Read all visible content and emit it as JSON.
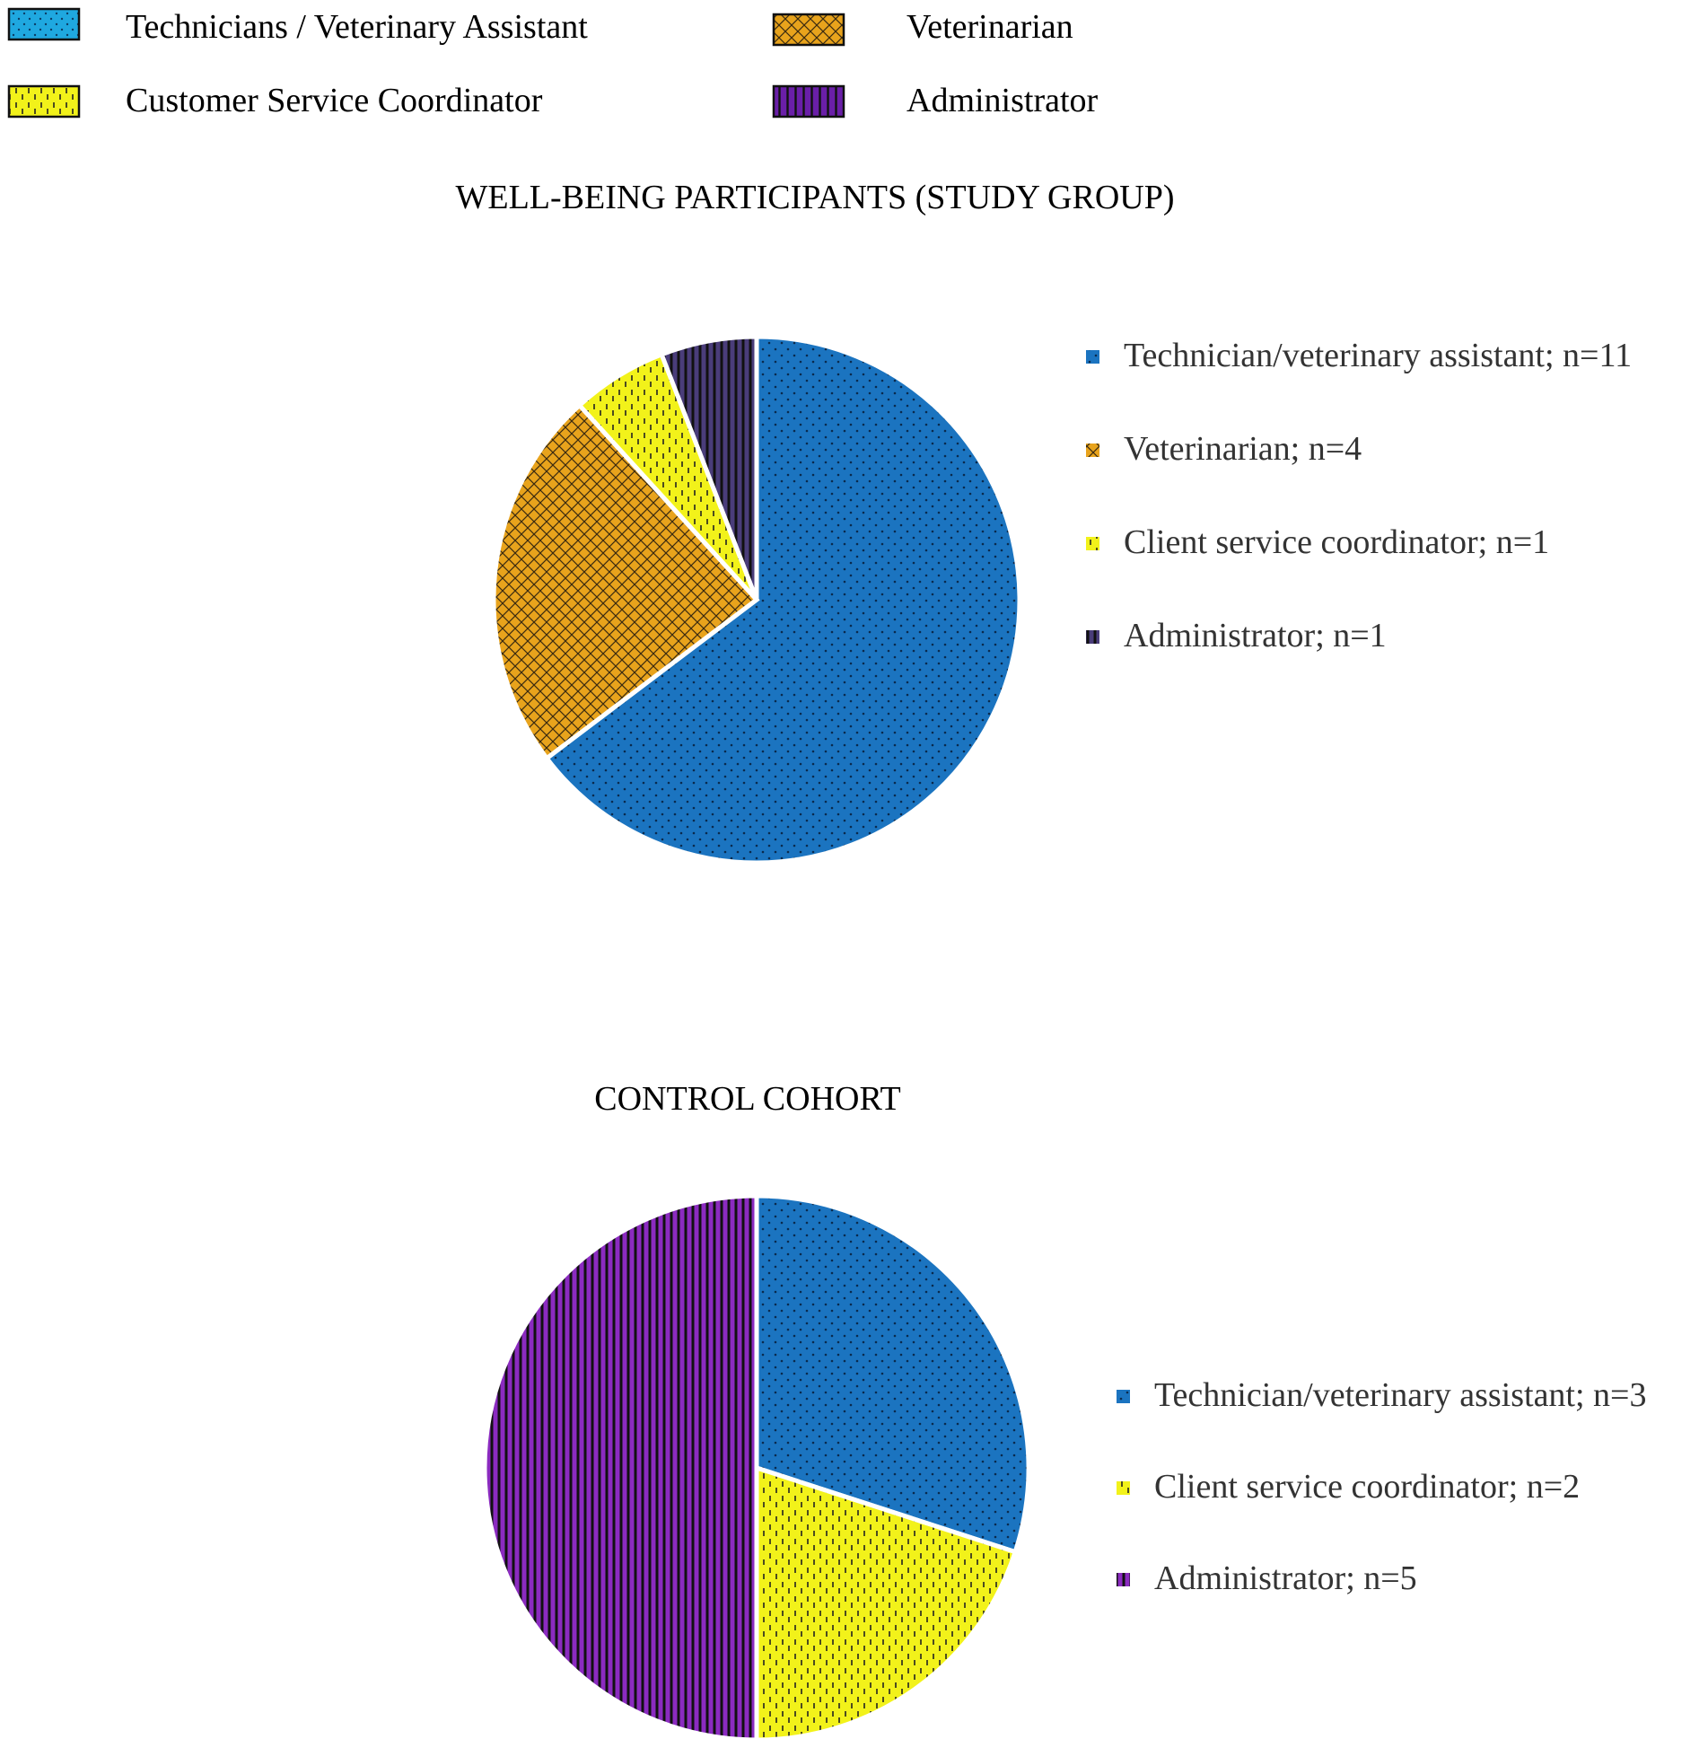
{
  "top_legend": {
    "items": [
      {
        "key": "tech",
        "label": "Technicians / Veterinary Assistant"
      },
      {
        "key": "vet",
        "label": "Veterinarian"
      },
      {
        "key": "csc",
        "label": "Customer Service Coordinator"
      },
      {
        "key": "admin",
        "label": "Administrator"
      }
    ]
  },
  "colors": {
    "tech_legend": "#1fa8e0",
    "tech": "#1b74c0",
    "vet": "#e8a31c",
    "csc": "#f2f21a",
    "admin_legend": "#6a1fa8",
    "admin_study": "#35305a",
    "admin_control": "#8b2bc0"
  },
  "chart_data": [
    {
      "type": "pie",
      "title": "WELL-BEING PARTICIPANTS (STUDY GROUP)",
      "categories": [
        "Technician/veterinary assistant",
        "Veterinarian",
        "Client service coordinator",
        "Administrator"
      ],
      "values": [
        11,
        4,
        1,
        1
      ],
      "keys": [
        "tech",
        "vet",
        "csc",
        "admin"
      ],
      "legend_labels": [
        "Technician/veterinary assistant; n=11",
        "Veterinarian; n=4",
        "Client service coordinator; n=1",
        "Administrator; n=1"
      ],
      "legend_position": "right"
    },
    {
      "type": "pie",
      "title": "CONTROL COHORT",
      "categories": [
        "Technician/veterinary assistant",
        "Client service coordinator",
        "Administrator"
      ],
      "values": [
        3,
        2,
        5
      ],
      "keys": [
        "tech",
        "csc",
        "admin"
      ],
      "legend_labels": [
        "Technician/veterinary assistant; n=3",
        "Client service coordinator; n=2",
        "Administrator; n=5"
      ],
      "legend_position": "right"
    }
  ]
}
